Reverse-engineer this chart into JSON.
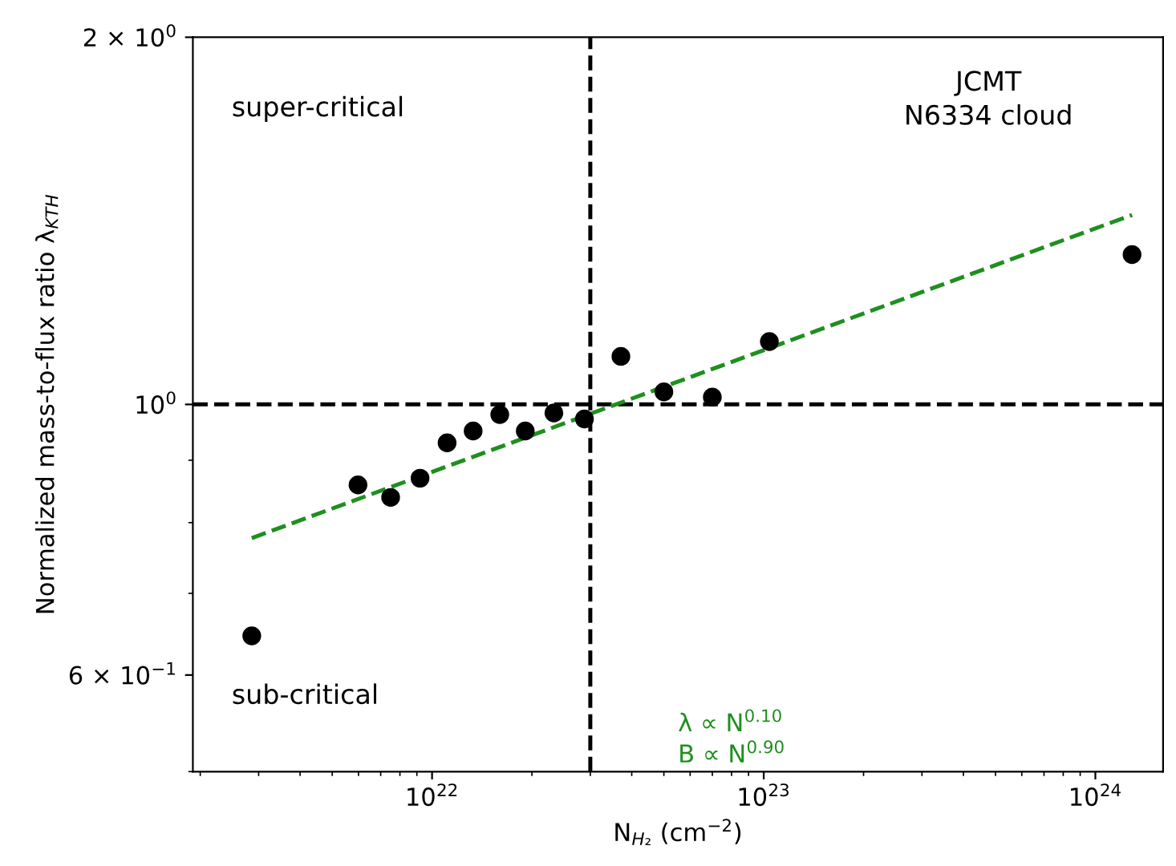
{
  "chart_data": {
    "type": "scatter",
    "xlabel": "N$_{H₂}$ (cm$^{−2}$)",
    "ylabel": "Normalized mass-to-flux ratio λ$_{KTH}$",
    "log": "xy",
    "grid": false,
    "legend": false,
    "xlim": [
      1.9e+21,
      1.6e+24
    ],
    "ylim": [
      0.5,
      2
    ],
    "xticks": [
      {
        "value": 1e+22,
        "label": "10$^{22}$"
      },
      {
        "value": 1e+23,
        "label": "10$^{23}$"
      },
      {
        "value": 1e+24,
        "label": "10$^{24}$"
      }
    ],
    "yticks": [
      {
        "value": 0.5,
        "label": null
      },
      {
        "value": 0.6,
        "label": "6 × 10$^{−1}$"
      },
      {
        "value": 0.7,
        "label": null
      },
      {
        "value": 0.8,
        "label": null
      },
      {
        "value": 0.9,
        "label": null
      },
      {
        "value": 1,
        "label": "10$^{0}$"
      },
      {
        "value": 2,
        "label": "2 × 10$^{0}$"
      }
    ],
    "series": [
      {
        "color": "#000000",
        "marker": "circle",
        "x": [
          2.86e+21,
          5.98e+21,
          7.5e+21,
          9.2e+21,
          1.11e+22,
          1.33e+22,
          1.6e+22,
          1.91e+22,
          2.33e+22,
          2.88e+22,
          3.71e+22,
          5e+22,
          7e+22,
          1.04e+23,
          1.29e+24
        ],
        "values": [
          0.646,
          0.859,
          0.839,
          0.87,
          0.93,
          0.951,
          0.981,
          0.951,
          0.984,
          0.973,
          1.095,
          1.024,
          1.014,
          1.126,
          1.327
        ]
      },
      {
        "type": "line",
        "color": "#1f8f1f",
        "line_style": "dashed",
        "marker": "none",
        "x": [
          2.86e+21,
          1.29e+24
        ],
        "values": [
          0.777,
          1.43
        ]
      }
    ],
    "ref_lines": [
      {
        "axis": "x",
        "value": 3e+22,
        "color": "#000000",
        "line_style": "dashed"
      },
      {
        "axis": "y",
        "value": 1,
        "color": "#000000",
        "line_style": "dashed"
      }
    ],
    "annotations": [
      "super-critical",
      "sub-critical",
      "JCMT\nN6334 cloud",
      "λ ∝ N$^{0.10}$\nB ∝ N$^{0.90}$"
    ]
  }
}
